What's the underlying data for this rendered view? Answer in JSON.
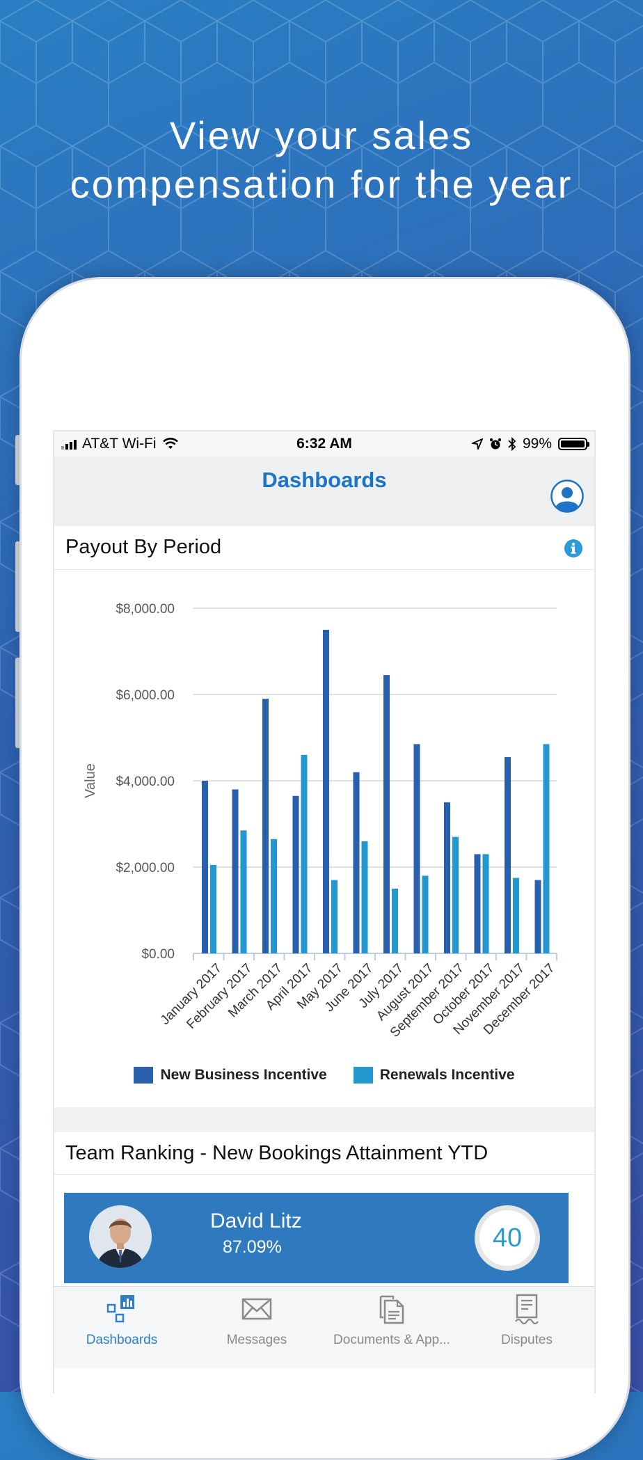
{
  "headline": {
    "line1": "View your sales",
    "line2": "compensation for the year"
  },
  "status_bar": {
    "carrier": "AT&T Wi-Fi",
    "time": "6:32 AM",
    "battery": "99%",
    "battery_level": 0.99,
    "icons": [
      "signal-icon",
      "wifi-icon",
      "location-icon",
      "alarm-icon",
      "bluetooth-icon",
      "battery-icon"
    ]
  },
  "nav": {
    "title": "Dashboards",
    "profile_icon": "profile-icon"
  },
  "payout_card": {
    "title": "Payout By Period",
    "info_icon": "info-icon"
  },
  "chart_data": {
    "type": "bar",
    "title": "Payout By Period",
    "ylabel": "Value",
    "xlabel": "",
    "ylim": [
      0,
      8000
    ],
    "yticks": [
      "$0.00",
      "$2,000.00",
      "$4,000.00",
      "$6,000.00",
      "$8,000.00"
    ],
    "grid": true,
    "legend_placement": "bottom",
    "categories": [
      "January 2017",
      "February 2017",
      "March 2017",
      "April 2017",
      "May 2017",
      "June 2017",
      "July 2017",
      "August 2017",
      "September 2017",
      "October 2017",
      "November 2017",
      "December 2017"
    ],
    "series": [
      {
        "name": "New Business Incentive",
        "color": "#2860ae",
        "values": [
          4000,
          3800,
          5900,
          3650,
          7500,
          4200,
          6450,
          4850,
          3500,
          2300,
          4550,
          1700
        ]
      },
      {
        "name": "Renewals Incentive",
        "color": "#2397cf",
        "values": [
          2050,
          2850,
          2650,
          4600,
          1700,
          2600,
          1500,
          1800,
          2700,
          2300,
          1750,
          4850
        ]
      }
    ]
  },
  "ranking_card": {
    "title": "Team Ranking - New Bookings Attainment YTD",
    "name": "David Litz",
    "percent": "87.09%",
    "rank": "40"
  },
  "tabs": [
    {
      "label": "Dashboards",
      "icon": "dashboards-icon",
      "active": true
    },
    {
      "label": "Messages",
      "icon": "messages-icon",
      "active": false
    },
    {
      "label": "Documents & App...",
      "icon": "documents-icon",
      "active": false
    },
    {
      "label": "Disputes",
      "icon": "disputes-icon",
      "active": false
    }
  ],
  "colors": {
    "accent": "#1b74c5",
    "rank_card": "#2f7abf",
    "rank_number": "#2a9bd6"
  }
}
